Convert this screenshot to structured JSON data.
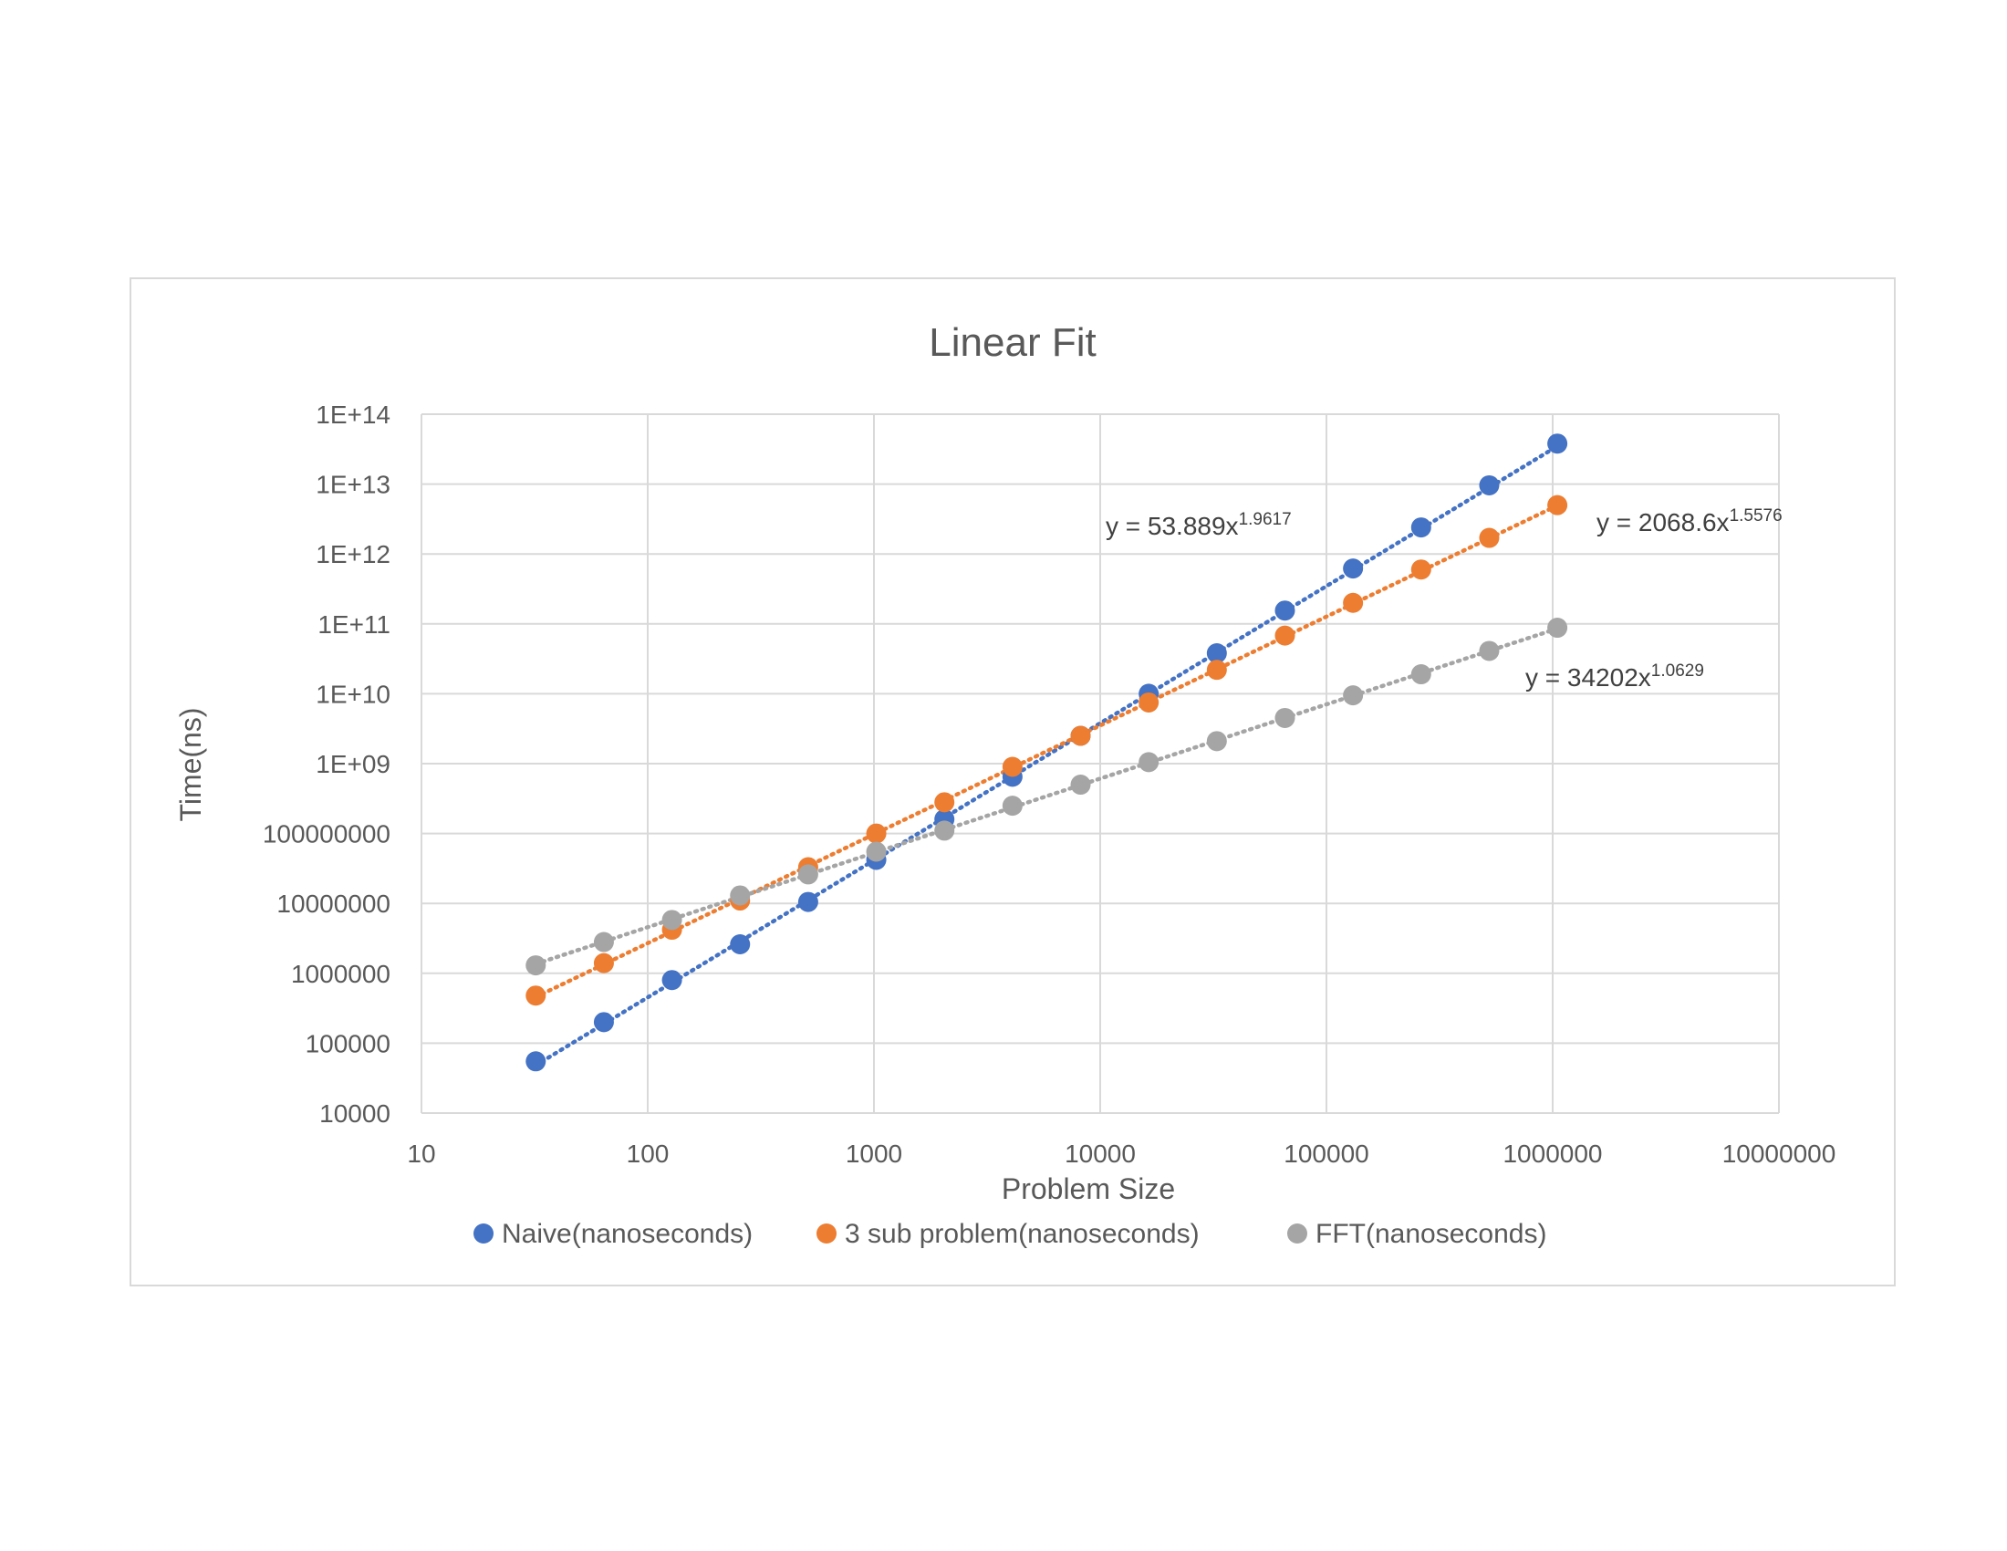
{
  "chart_data": {
    "type": "scatter",
    "title": "Linear Fit",
    "xlabel": "Problem Size",
    "ylabel": "Time(ns)",
    "xscale": "log",
    "yscale": "log",
    "xlim": [
      10,
      10000000
    ],
    "ylim": [
      10000,
      100000000000000
    ],
    "grid": true,
    "legend": "bottom",
    "x_ticks": [
      "10",
      "100",
      "1000",
      "10000",
      "100000",
      "1000000",
      "10000000"
    ],
    "y_ticks": [
      "10000",
      "100000",
      "1000000",
      "10000000",
      "100000000",
      "1E+09",
      "1E+10",
      "1E+11",
      "1E+12",
      "1E+13",
      "1E+14"
    ],
    "x": [
      32,
      64,
      128,
      256,
      512,
      1024,
      2048,
      4096,
      8192,
      16384,
      32768,
      65536,
      131072,
      262144,
      524288,
      1048576
    ],
    "series": [
      {
        "name": "Naive(nanoseconds)",
        "color": "#4472c4",
        "values": [
          55000,
          200000,
          800000,
          2600000,
          10500000,
          42000000,
          160000000,
          650000000,
          2500000000,
          10000000000,
          38000000000,
          155000000000,
          620000000000,
          2400000000000,
          9600000000000,
          38000000000000
        ],
        "trendline": {
          "type": "power",
          "a": 53.889,
          "b": 1.9617
        },
        "equation": {
          "base": "y = 53.889x",
          "exponent": "1.9617"
        }
      },
      {
        "name": "3 sub problem(nanoseconds)",
        "color": "#ed7d31",
        "values": [
          480000,
          1400000,
          4200000,
          11000000,
          33000000,
          100000000,
          280000000,
          900000000,
          2500000000,
          7500000000,
          22000000000,
          68000000000,
          200000000000,
          600000000000,
          1700000000000,
          5000000000000
        ],
        "trendline": {
          "type": "power",
          "a": 2068.6,
          "b": 1.5576
        },
        "equation": {
          "base": "y = 2068.6x",
          "exponent": "1.5576"
        }
      },
      {
        "name": "FFT(nanoseconds)",
        "color": "#a5a5a5",
        "values": [
          1300000,
          2800000,
          5800000,
          13000000,
          26000000,
          55000000,
          110000000,
          250000000,
          500000000,
          1050000000,
          2100000000,
          4500000000,
          9500000000,
          19000000000,
          41000000000,
          88000000000
        ],
        "trendline": {
          "type": "power",
          "a": 34202,
          "b": 1.0629
        },
        "equation": {
          "base": "y = 34202x",
          "exponent": "1.0629"
        }
      }
    ]
  }
}
